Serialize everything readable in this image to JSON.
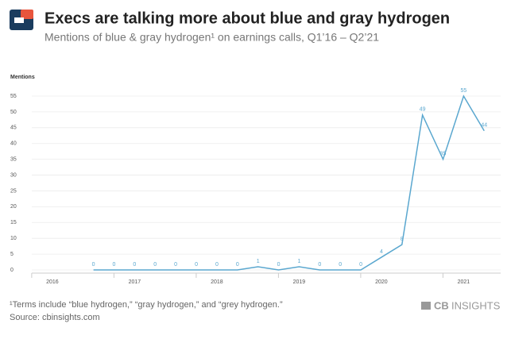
{
  "chart_data": {
    "type": "line",
    "title": "Execs are talking more about blue and gray hydrogen",
    "subtitle": "Mentions of blue & gray hydrogen¹ on earnings calls, Q1’16 – Q2’21",
    "y_label": "Mentions",
    "x": [
      2016.5,
      2016.75,
      2017,
      2017.25,
      2017.5,
      2017.75,
      2018,
      2018.25,
      2018.5,
      2018.75,
      2019,
      2019.25,
      2019.5,
      2019.75,
      2020,
      2020.25,
      2020.5,
      2020.75,
      2021,
      2021.25
    ],
    "series": [
      {
        "name": "Mentions",
        "color": "#5aa7cf",
        "values": [
          0,
          0,
          0,
          0,
          0,
          0,
          0,
          0,
          1,
          0,
          1,
          0,
          0,
          0,
          4,
          8,
          49,
          35,
          55,
          44
        ]
      }
    ],
    "xlim": [
      2015.75,
      2021.45
    ],
    "xticks": [
      2016,
      2017,
      2018,
      2019,
      2020,
      2021
    ],
    "ylim": [
      0,
      55
    ],
    "yticks": [
      0,
      5,
      10,
      15,
      20,
      25,
      30,
      35,
      40,
      45,
      50,
      55
    ],
    "grid": true,
    "footnote": "¹Terms include “blue hydrogen,” “gray hydrogen,” and “grey hydrogen.”",
    "source": "Source: cbinsights.com"
  },
  "brand": {
    "bold": "CB",
    "rest": "INSIGHTS"
  }
}
